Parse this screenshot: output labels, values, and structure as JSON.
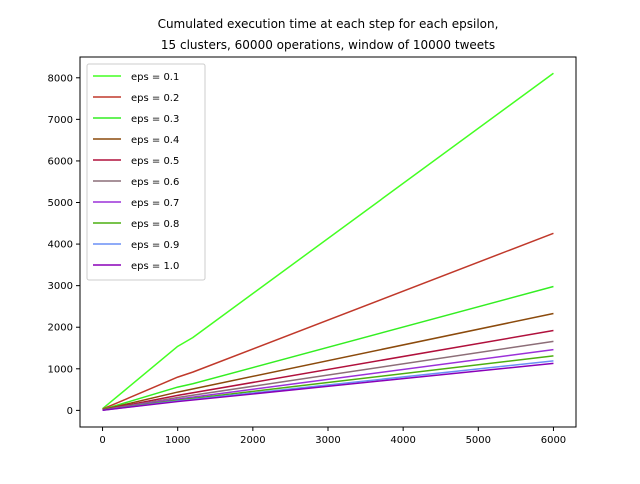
{
  "chart_data": {
    "type": "line",
    "title_lines": [
      "Cumulated execution time at each step for each epsilon,",
      "15 clusters, 60000 operations, window of 10000 tweets"
    ],
    "xlabel": "",
    "ylabel": "",
    "xlim": [
      -300,
      6300
    ],
    "ylim": [
      -400,
      8500
    ],
    "x_ticks": [
      0,
      1000,
      2000,
      3000,
      4000,
      5000,
      6000
    ],
    "y_ticks": [
      0,
      1000,
      2000,
      3000,
      4000,
      5000,
      6000,
      7000,
      8000
    ],
    "grid": false,
    "legend_position": "top-left",
    "series": [
      {
        "name": "eps = 0.1",
        "color": "#44ff22",
        "points": [
          [
            0,
            40
          ],
          [
            1000,
            1540
          ],
          [
            1200,
            1750
          ],
          [
            6000,
            8110
          ]
        ]
      },
      {
        "name": "eps = 0.2",
        "color": "#c0392b",
        "points": [
          [
            0,
            30
          ],
          [
            1000,
            800
          ],
          [
            1200,
            920
          ],
          [
            6000,
            4260
          ]
        ]
      },
      {
        "name": "eps = 0.3",
        "color": "#33ee22",
        "points": [
          [
            0,
            20
          ],
          [
            1000,
            560
          ],
          [
            1200,
            640
          ],
          [
            6000,
            2980
          ]
        ]
      },
      {
        "name": "eps = 0.4",
        "color": "#8b4a0c",
        "points": [
          [
            0,
            15
          ],
          [
            1000,
            440
          ],
          [
            6000,
            2330
          ]
        ]
      },
      {
        "name": "eps = 0.5",
        "color": "#b0103c",
        "points": [
          [
            0,
            10
          ],
          [
            1000,
            360
          ],
          [
            6000,
            1920
          ]
        ]
      },
      {
        "name": "eps = 0.6",
        "color": "#8c6e78",
        "points": [
          [
            0,
            8
          ],
          [
            1000,
            310
          ],
          [
            6000,
            1660
          ]
        ]
      },
      {
        "name": "eps = 0.7",
        "color": "#9b30d9",
        "points": [
          [
            0,
            6
          ],
          [
            1000,
            270
          ],
          [
            6000,
            1460
          ]
        ]
      },
      {
        "name": "eps = 0.8",
        "color": "#4caf10",
        "points": [
          [
            0,
            5
          ],
          [
            1000,
            245
          ],
          [
            6000,
            1310
          ]
        ]
      },
      {
        "name": "eps = 0.9",
        "color": "#6a8ff5",
        "points": [
          [
            0,
            4
          ],
          [
            1000,
            225
          ],
          [
            6000,
            1190
          ]
        ]
      },
      {
        "name": "eps = 1.0",
        "color": "#8a00b8",
        "points": [
          [
            0,
            3
          ],
          [
            1000,
            212
          ],
          [
            6000,
            1130
          ]
        ]
      }
    ]
  }
}
